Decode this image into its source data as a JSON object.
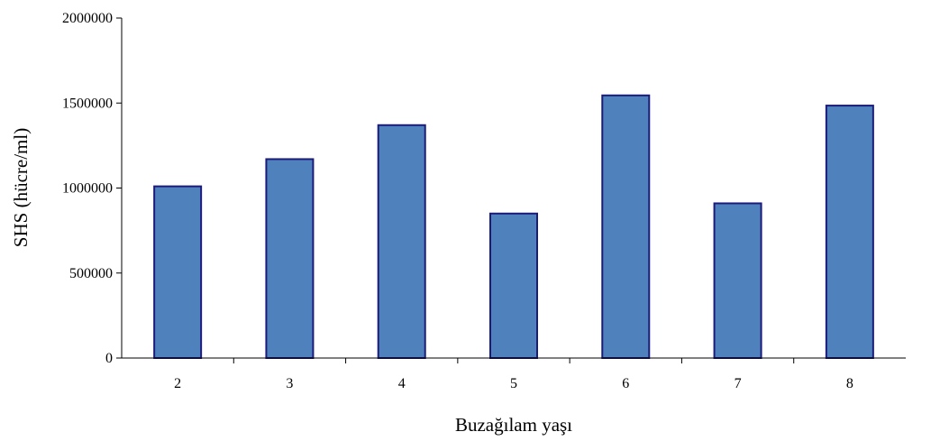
{
  "chart_data": {
    "type": "bar",
    "title": "",
    "xlabel": "Buzağılam yaşı",
    "ylabel": "SHS (hücre/ml)",
    "categories": [
      "2",
      "3",
      "4",
      "5",
      "6",
      "7",
      "8"
    ],
    "values": [
      1010000,
      1170000,
      1370000,
      850000,
      1545000,
      910000,
      1485000
    ],
    "ylim": [
      0,
      2000000
    ],
    "yticks": [
      "0",
      "500000",
      "1000000",
      "1500000",
      "2000000"
    ],
    "bar_fill": "#4F81BD",
    "bar_stroke": "#1B1B7A",
    "grid": false,
    "legend": "none"
  }
}
